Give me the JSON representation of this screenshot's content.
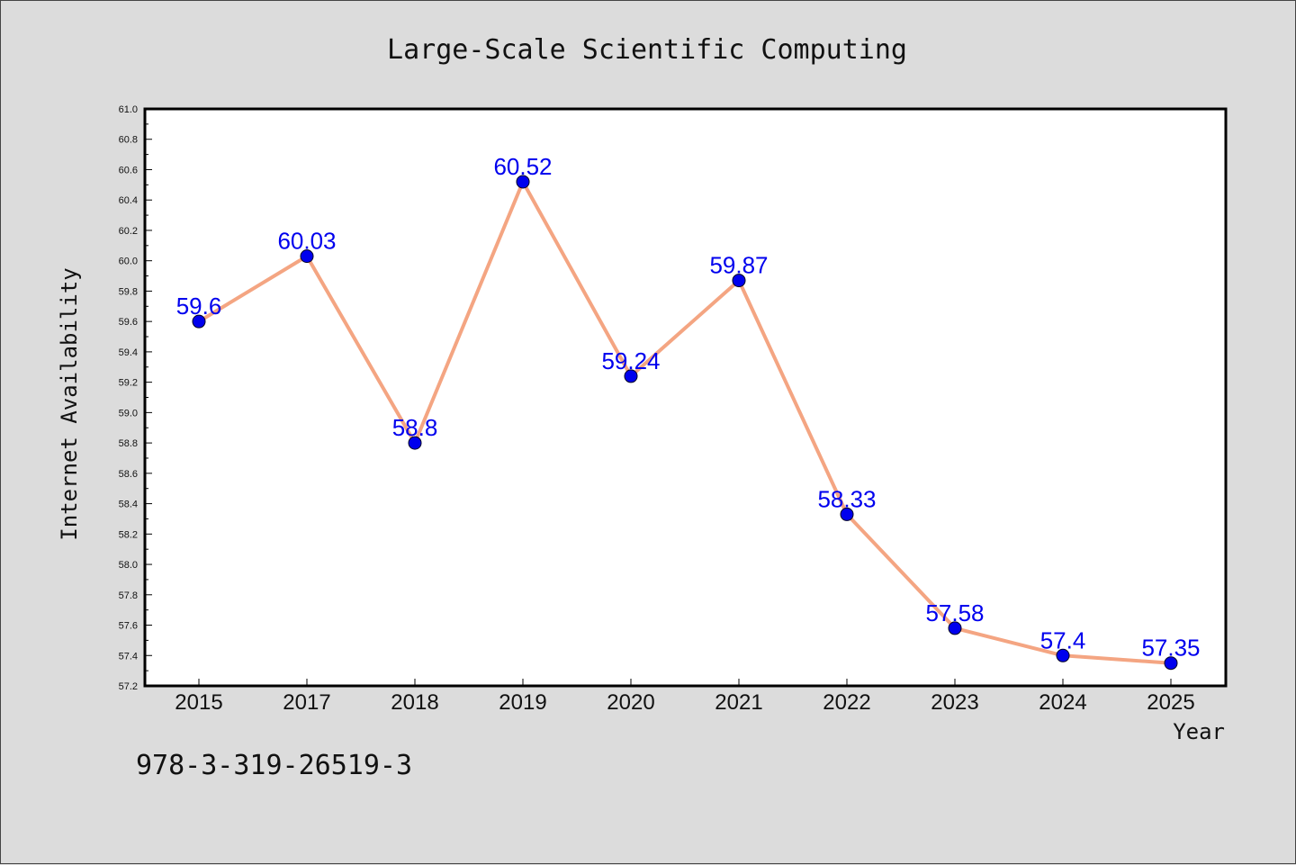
{
  "colors": {
    "background": "#dcdcdc",
    "plot_background": "#ffffff",
    "line": "#f4a582",
    "marker_fill": "#0000ee",
    "data_label": "#0000ee"
  },
  "footnote": "978-3-319-26519-3",
  "chart_data": {
    "type": "line",
    "title": "Large-Scale Scientific Computing",
    "xlabel": "Year",
    "ylabel": "Internet Availability",
    "categories": [
      "2015",
      "2017",
      "2018",
      "2019",
      "2020",
      "2021",
      "2022",
      "2023",
      "2024",
      "2025"
    ],
    "series": [
      {
        "values": [
          59.6,
          60.03,
          58.8,
          60.52,
          59.24,
          59.87,
          58.33,
          57.58,
          57.4,
          57.35
        ],
        "labels": [
          "59.6",
          "60.03",
          "58.8",
          "60.52",
          "59.24",
          "59.87",
          "58.33",
          "57.58",
          "57.4",
          "57.35"
        ]
      }
    ],
    "ylim": [
      57.2,
      61.0
    ],
    "yticks": [
      "57.2",
      "57.4",
      "57.6",
      "57.8",
      "58.0",
      "58.2",
      "58.4",
      "58.6",
      "58.8",
      "59.0",
      "59.2",
      "59.4",
      "59.6",
      "59.8",
      "60.0",
      "60.2",
      "60.4",
      "60.6",
      "60.8",
      "61.0"
    ],
    "grid": false,
    "legend": "none"
  }
}
